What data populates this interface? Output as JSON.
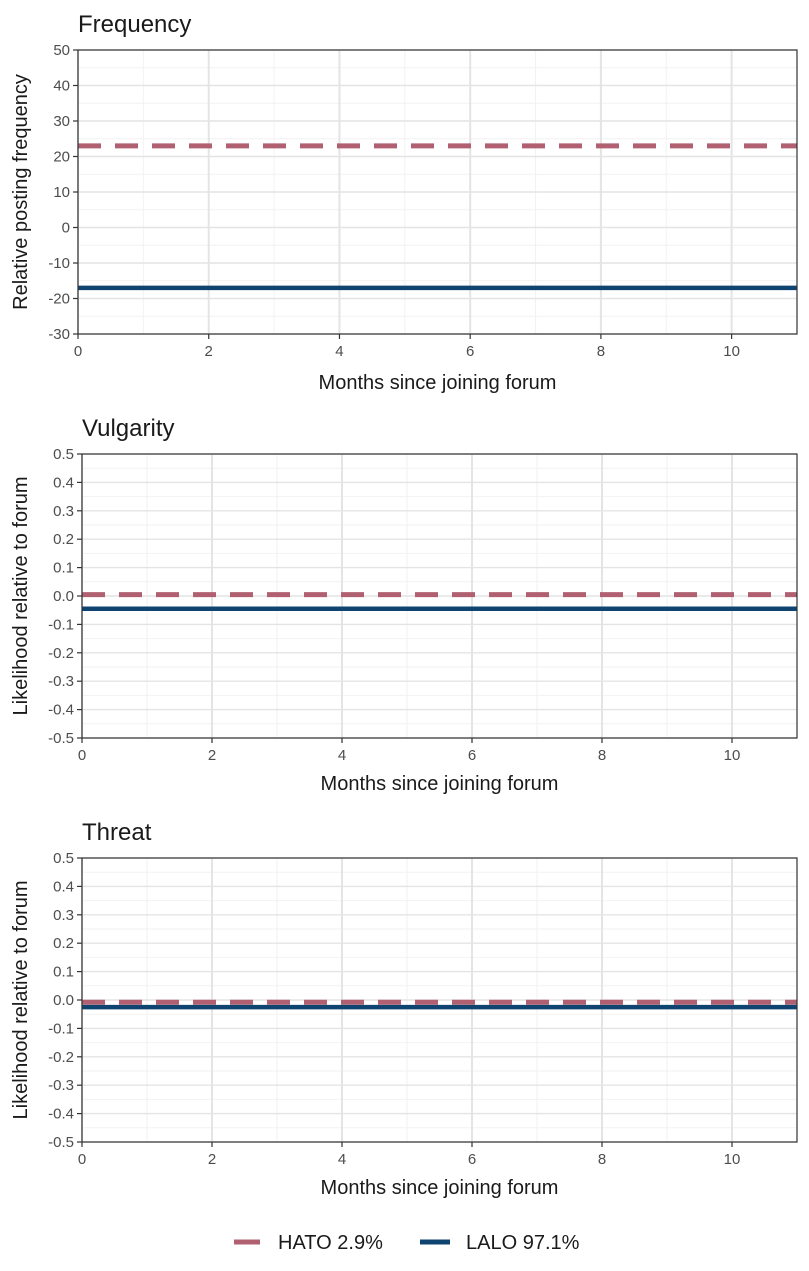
{
  "chart_data": [
    {
      "type": "line",
      "title": "Frequency",
      "xlabel": "Months since joining forum",
      "ylabel": "Relative posting frequency",
      "xlim": [
        0,
        11
      ],
      "ylim": [
        -30,
        50
      ],
      "x_ticks": [
        0,
        2,
        4,
        6,
        8,
        10
      ],
      "y_ticks": [
        -30,
        -20,
        -10,
        0,
        10,
        20,
        30,
        40,
        50
      ],
      "y_tick_labels": [
        "-30",
        "-20",
        "-10",
        "0",
        "10",
        "20",
        "30",
        "40",
        "50"
      ],
      "grid": true,
      "series": [
        {
          "name": "HATO 2.9%",
          "color": "#b06070",
          "dash": "dashed",
          "x": [
            0,
            11
          ],
          "y": [
            23,
            23
          ]
        },
        {
          "name": "LALO 97.1%",
          "color": "#0f4470",
          "dash": "solid",
          "x": [
            0,
            11
          ],
          "y": [
            -17,
            -17
          ]
        }
      ]
    },
    {
      "type": "line",
      "title": "Vulgarity",
      "xlabel": "Months since joining forum",
      "ylabel": "Likelihood relative to forum",
      "xlim": [
        0,
        11
      ],
      "ylim": [
        -0.5,
        0.5
      ],
      "x_ticks": [
        0,
        2,
        4,
        6,
        8,
        10
      ],
      "y_ticks": [
        -0.5,
        -0.4,
        -0.3,
        -0.2,
        -0.1,
        0,
        0.1,
        0.2,
        0.3,
        0.4,
        0.5
      ],
      "y_tick_labels": [
        "-0.5",
        "-0.4",
        "-0.3",
        "-0.2",
        "-0.1",
        "0.0",
        "0.1",
        "0.2",
        "0.3",
        "0.4",
        "0.5"
      ],
      "grid": true,
      "series": [
        {
          "name": "HATO 2.9%",
          "color": "#b06070",
          "dash": "dashed",
          "x": [
            0,
            11
          ],
          "y": [
            0.005,
            0.005
          ]
        },
        {
          "name": "LALO 97.1%",
          "color": "#0f4470",
          "dash": "solid",
          "x": [
            0,
            11
          ],
          "y": [
            -0.045,
            -0.045
          ]
        }
      ]
    },
    {
      "type": "line",
      "title": "Threat",
      "xlabel": "Months since joining forum",
      "ylabel": "Likelihood relative to forum",
      "xlim": [
        0,
        11
      ],
      "ylim": [
        -0.5,
        0.5
      ],
      "x_ticks": [
        0,
        2,
        4,
        6,
        8,
        10
      ],
      "y_ticks": [
        -0.5,
        -0.4,
        -0.3,
        -0.2,
        -0.1,
        0,
        0.1,
        0.2,
        0.3,
        0.4,
        0.5
      ],
      "y_tick_labels": [
        "-0.5",
        "-0.4",
        "-0.3",
        "-0.2",
        "-0.1",
        "0.0",
        "0.1",
        "0.2",
        "0.3",
        "0.4",
        "0.5"
      ],
      "grid": true,
      "series": [
        {
          "name": "HATO 2.9%",
          "color": "#b06070",
          "dash": "dashed",
          "x": [
            0,
            11
          ],
          "y": [
            -0.008,
            -0.008
          ]
        },
        {
          "name": "LALO 97.1%",
          "color": "#0f4470",
          "dash": "solid",
          "x": [
            0,
            11
          ],
          "y": [
            -0.025,
            -0.025
          ]
        }
      ]
    }
  ],
  "legend": {
    "position": "bottom",
    "items": [
      {
        "label": "HATO 2.9%",
        "color": "#b06070",
        "dash": "dashed"
      },
      {
        "label": "LALO 97.1%",
        "color": "#0f4470",
        "dash": "solid"
      }
    ]
  }
}
